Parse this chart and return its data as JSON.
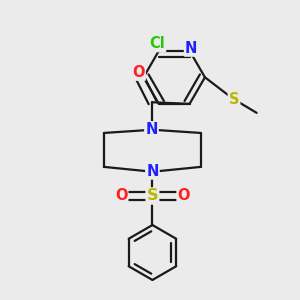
{
  "bg_color": "#ebebeb",
  "bond_color": "#1a1a1a",
  "bond_width": 1.6,
  "dbo": 0.012,
  "colors": {
    "N": "#2020ff",
    "O": "#ff2020",
    "S": "#b8b800",
    "Cl": "#22cc00",
    "C": "#1a1a1a"
  },
  "fs": 10.5
}
